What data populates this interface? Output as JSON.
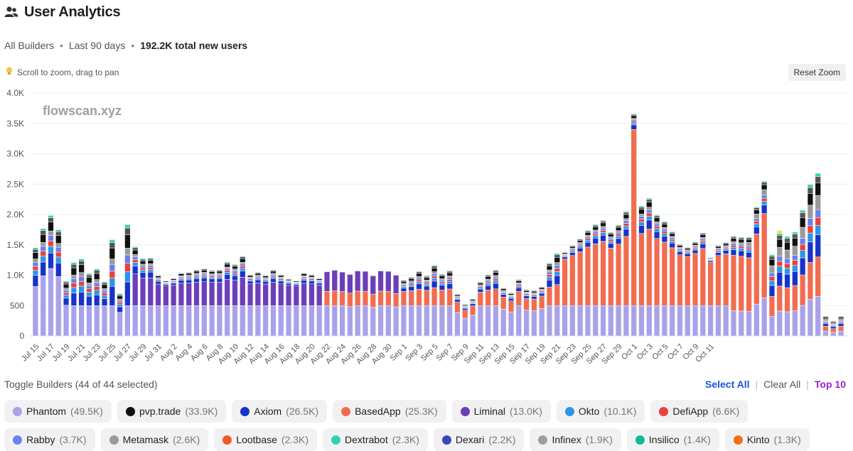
{
  "header": {
    "title": "User Analytics",
    "icon": "users-icon"
  },
  "meta": {
    "scope": "All Builders",
    "range": "Last 90 days",
    "total": "192.2K total new users"
  },
  "hint": {
    "icon": "lightbulb-icon",
    "text": "Scroll to zoom, drag to pan"
  },
  "reset_label": "Reset Zoom",
  "toggle": {
    "label": "Toggle Builders (44 of 44 selected)",
    "select_all": "Select All",
    "clear_all": "Clear All",
    "top10": "Top 10"
  },
  "builders_row1": [
    {
      "name": "Phantom",
      "value": "(49.5K)",
      "color": "#a9a2ea"
    },
    {
      "name": "pvp.trade",
      "value": "(33.9K)",
      "color": "#111111"
    },
    {
      "name": "Axiom",
      "value": "(26.5K)",
      "color": "#1733c9"
    },
    {
      "name": "BasedApp",
      "value": "(25.3K)",
      "color": "#f26c4f"
    },
    {
      "name": "Liminal",
      "value": "(13.0K)",
      "color": "#6c3fb8"
    },
    {
      "name": "Okto",
      "value": "(10.1K)",
      "color": "#2a97e6"
    },
    {
      "name": "DefiApp",
      "value": "(6.6K)",
      "color": "#e8423c"
    }
  ],
  "builders_row2": [
    {
      "name": "Rabby",
      "value": "(3.7K)",
      "color": "#6b7ff0"
    },
    {
      "name": "Metamask",
      "value": "(2.6K)",
      "color": "#9a9a9a"
    },
    {
      "name": "Lootbase",
      "value": "(2.3K)",
      "color": "#f2582a"
    },
    {
      "name": "Dextrabot",
      "value": "(2.3K)",
      "color": "#2fd3b3"
    },
    {
      "name": "Dexari",
      "value": "(2.2K)",
      "color": "#3b48b4"
    },
    {
      "name": "Infinex",
      "value": "(1.9K)",
      "color": "#9d9d9d"
    },
    {
      "name": "Insilico",
      "value": "(1.4K)",
      "color": "#10b997"
    },
    {
      "name": "Kinto",
      "value": "(1.3K)",
      "color": "#f07014"
    }
  ],
  "chart_data": {
    "type": "bar",
    "stacked": true,
    "watermark": "flowscan.xyz",
    "ylim": [
      0,
      4000
    ],
    "y_ticks": [
      0,
      500,
      1000,
      1500,
      2000,
      2500,
      3000,
      3500,
      4000
    ],
    "y_tick_labels": [
      "0",
      "500",
      "1.0K",
      "1.5K",
      "2.0K",
      "2.5K",
      "3.0K",
      "3.5K",
      "4.0K"
    ],
    "x_tick_labels": [
      "Jul 15",
      "Jul 17",
      "Jul 19",
      "Jul 21",
      "Jul 23",
      "Jul 25",
      "Jul 27",
      "Jul 29",
      "Jul 31",
      "Aug 2",
      "Aug 4",
      "Aug 6",
      "Aug 8",
      "Aug 10",
      "Aug 12",
      "Aug 14",
      "Aug 16",
      "Aug 18",
      "Aug 20",
      "Aug 22",
      "Aug 24",
      "Aug 26",
      "Aug 28",
      "Aug 30",
      "Sep 1",
      "Sep 3",
      "Sep 5",
      "Sep 7",
      "Sep 9",
      "Sep 11",
      "Sep 13",
      "Sep 15",
      "Sep 17",
      "Sep 19",
      "Sep 21",
      "Sep 23",
      "Sep 25",
      "Sep 27",
      "Sep 29",
      "Oct 1",
      "Oct 3",
      "Oct 5",
      "Oct 7",
      "Oct 9",
      "Oct 11"
    ],
    "totals": [
      1480,
      1800,
      2020,
      1780,
      920,
      1240,
      1300,
      1050,
      1130,
      910,
      1630,
      710,
      1890,
      1490,
      1290,
      1300,
      1010,
      920,
      960,
      1050,
      1060,
      1100,
      1120,
      1090,
      1100,
      1230,
      1190,
      1330,
      1020,
      1060,
      1010,
      1100,
      1020,
      950,
      920,
      1050,
      1020,
      960,
      930,
      970,
      920,
      880,
      950,
      940,
      860,
      950,
      940,
      870,
      930,
      980,
      1080,
      1000,
      1180,
      1030,
      1090,
      700,
      530,
      620,
      900,
      1020,
      1100,
      800,
      720,
      940,
      770,
      760,
      820,
      1220,
      1380,
      1390,
      1500,
      1610,
      1750,
      1850,
      1920,
      1720,
      1840,
      2070,
      3670,
      2160,
      2290,
      2010,
      1900,
      1730,
      1520,
      1470,
      1560,
      1710,
      1300,
      1500,
      1550,
      1660,
      1640,
      1610,
      2100,
      2520,
      1300,
      1640,
      1590,
      1660,
      2010,
      2420,
      2600,
      320,
      240,
      320
    ],
    "segment_colors": [
      "#a9a2ea",
      "#f26c4f",
      "#6c3fb8",
      "#1733c9",
      "#2a97e6",
      "#e8423c",
      "#6b7ff0",
      "#9a9a9a",
      "#111111",
      "#555555",
      "#2fd3b3",
      "#f5e046"
    ]
  }
}
